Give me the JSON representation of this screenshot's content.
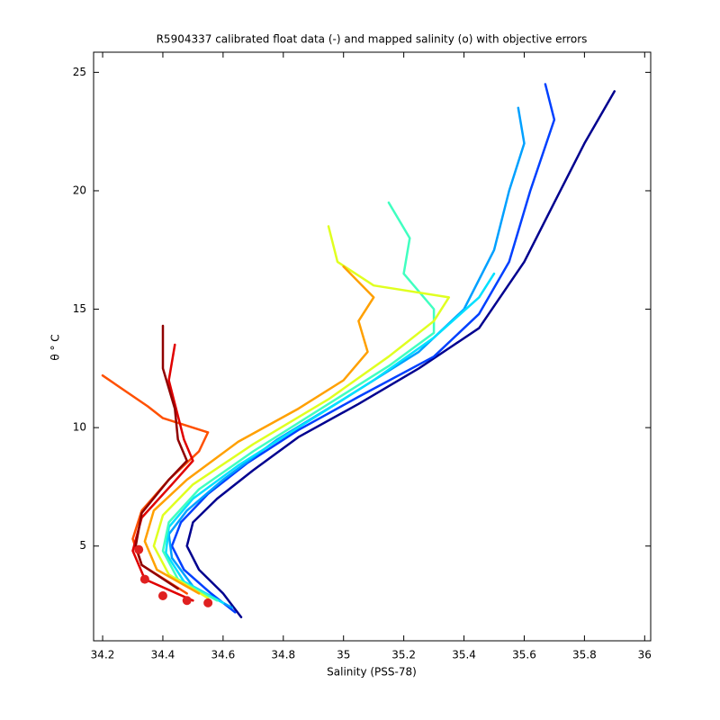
{
  "chart_data": {
    "type": "line",
    "title": "R5904337 calibrated float data (-) and mapped salinity (o) with objective errors",
    "x_label": "Salinity (PSS-78)",
    "y_label": "θ ° C",
    "xlim": [
      34.17,
      36.02
    ],
    "ylim": [
      1,
      25.85
    ],
    "xticks": [
      34.2,
      34.4,
      34.6,
      34.8,
      35,
      35.2,
      35.4,
      35.6,
      35.8,
      36
    ],
    "yticks": [
      5,
      10,
      15,
      20,
      25
    ],
    "grid": false,
    "series": [
      {
        "color": "#00008f",
        "x": [
          34.66,
          34.6,
          34.52,
          34.48,
          34.5,
          34.58,
          34.7,
          34.85,
          35.05,
          35.25,
          35.45,
          35.6,
          35.7,
          35.8,
          35.9
        ],
        "values": [
          2,
          3,
          4,
          5,
          6,
          7,
          8.2,
          9.6,
          11,
          12.5,
          14.2,
          17,
          19.5,
          22,
          24.2
        ]
      },
      {
        "color": "#0040ff",
        "x": [
          34.64,
          34.56,
          34.47,
          34.43,
          34.46,
          34.55,
          34.68,
          34.85,
          35.05,
          35.3,
          35.45,
          35.55,
          35.62,
          35.7,
          35.67
        ],
        "values": [
          2.2,
          3,
          4,
          5,
          6,
          7.2,
          8.5,
          9.9,
          11.3,
          13,
          14.8,
          17,
          20,
          23,
          24.5
        ]
      },
      {
        "color": "#00a0ff",
        "x": [
          34.63,
          34.5,
          34.43,
          34.42,
          34.48,
          34.6,
          34.78,
          35,
          35.25,
          35.4,
          35.5,
          35.55,
          35.6,
          35.58
        ],
        "values": [
          2.4,
          3.3,
          4.5,
          5.5,
          6.5,
          7.8,
          9.5,
          11.2,
          13.2,
          15,
          17.5,
          20,
          22,
          23.5
        ]
      },
      {
        "color": "#00e0ff",
        "x": [
          34.6,
          34.47,
          34.41,
          34.42,
          34.5,
          34.65,
          34.85,
          35.1,
          35.3,
          35.45,
          35.5
        ],
        "values": [
          2.6,
          3.5,
          4.7,
          5.8,
          7,
          8.4,
          10,
          12,
          13.8,
          15.5,
          16.5
        ]
      },
      {
        "color": "#40ffc0",
        "x": [
          34.58,
          34.45,
          34.4,
          34.42,
          34.52,
          34.7,
          34.95,
          35.15,
          35.3,
          35.3,
          35.2,
          35.22,
          35.15
        ],
        "values": [
          2.7,
          3.6,
          4.8,
          6,
          7.4,
          9,
          11,
          12.6,
          14,
          15,
          16.5,
          18,
          19.5
        ]
      },
      {
        "color": "#e0ff20",
        "x": [
          34.55,
          34.42,
          34.37,
          34.4,
          34.5,
          34.7,
          34.95,
          35.15,
          35.3,
          35.35,
          35.1,
          34.98,
          34.95
        ],
        "values": [
          2.8,
          3.8,
          5,
          6.3,
          7.6,
          9.3,
          11.2,
          13,
          14.5,
          15.5,
          16,
          17,
          18.5
        ]
      },
      {
        "color": "#ffa000",
        "x": [
          34.52,
          34.38,
          34.34,
          34.37,
          34.48,
          34.65,
          34.85,
          35,
          35.08,
          35.05,
          35.1,
          35
        ],
        "values": [
          3,
          4,
          5.2,
          6.5,
          7.8,
          9.4,
          10.8,
          12,
          13.2,
          14.5,
          15.5,
          16.8
        ]
      },
      {
        "color": "#ff5000",
        "x": [
          34.48,
          34.33,
          34.3,
          34.33,
          34.42,
          34.52,
          34.55,
          34.4,
          34.35,
          34.2
        ],
        "values": [
          3,
          4.2,
          5.3,
          6.5,
          7.8,
          9,
          9.8,
          10.4,
          10.9,
          12.2
        ]
      },
      {
        "color": "#e00000",
        "x": [
          34.5,
          34.34,
          34.3,
          34.33,
          34.43,
          34.5,
          34.47,
          34.45,
          34.42,
          34.44
        ],
        "values": [
          2.7,
          3.6,
          4.8,
          6.2,
          7.6,
          8.6,
          9.5,
          10.5,
          12,
          13.5
        ]
      },
      {
        "color": "#900000",
        "x": [
          34.45,
          34.33,
          34.31,
          34.33,
          34.42,
          34.48,
          34.45,
          34.44,
          34.4,
          34.4
        ],
        "values": [
          3.2,
          4.2,
          5,
          6.4,
          7.8,
          8.6,
          9.5,
          10.8,
          12.5,
          14.3
        ]
      },
      {
        "color": "#e02020",
        "marker": "o",
        "x": [
          34.32,
          34.34,
          34.4,
          34.48,
          34.55
        ],
        "values": [
          4.85,
          3.6,
          2.9,
          2.7,
          2.6
        ]
      }
    ]
  }
}
